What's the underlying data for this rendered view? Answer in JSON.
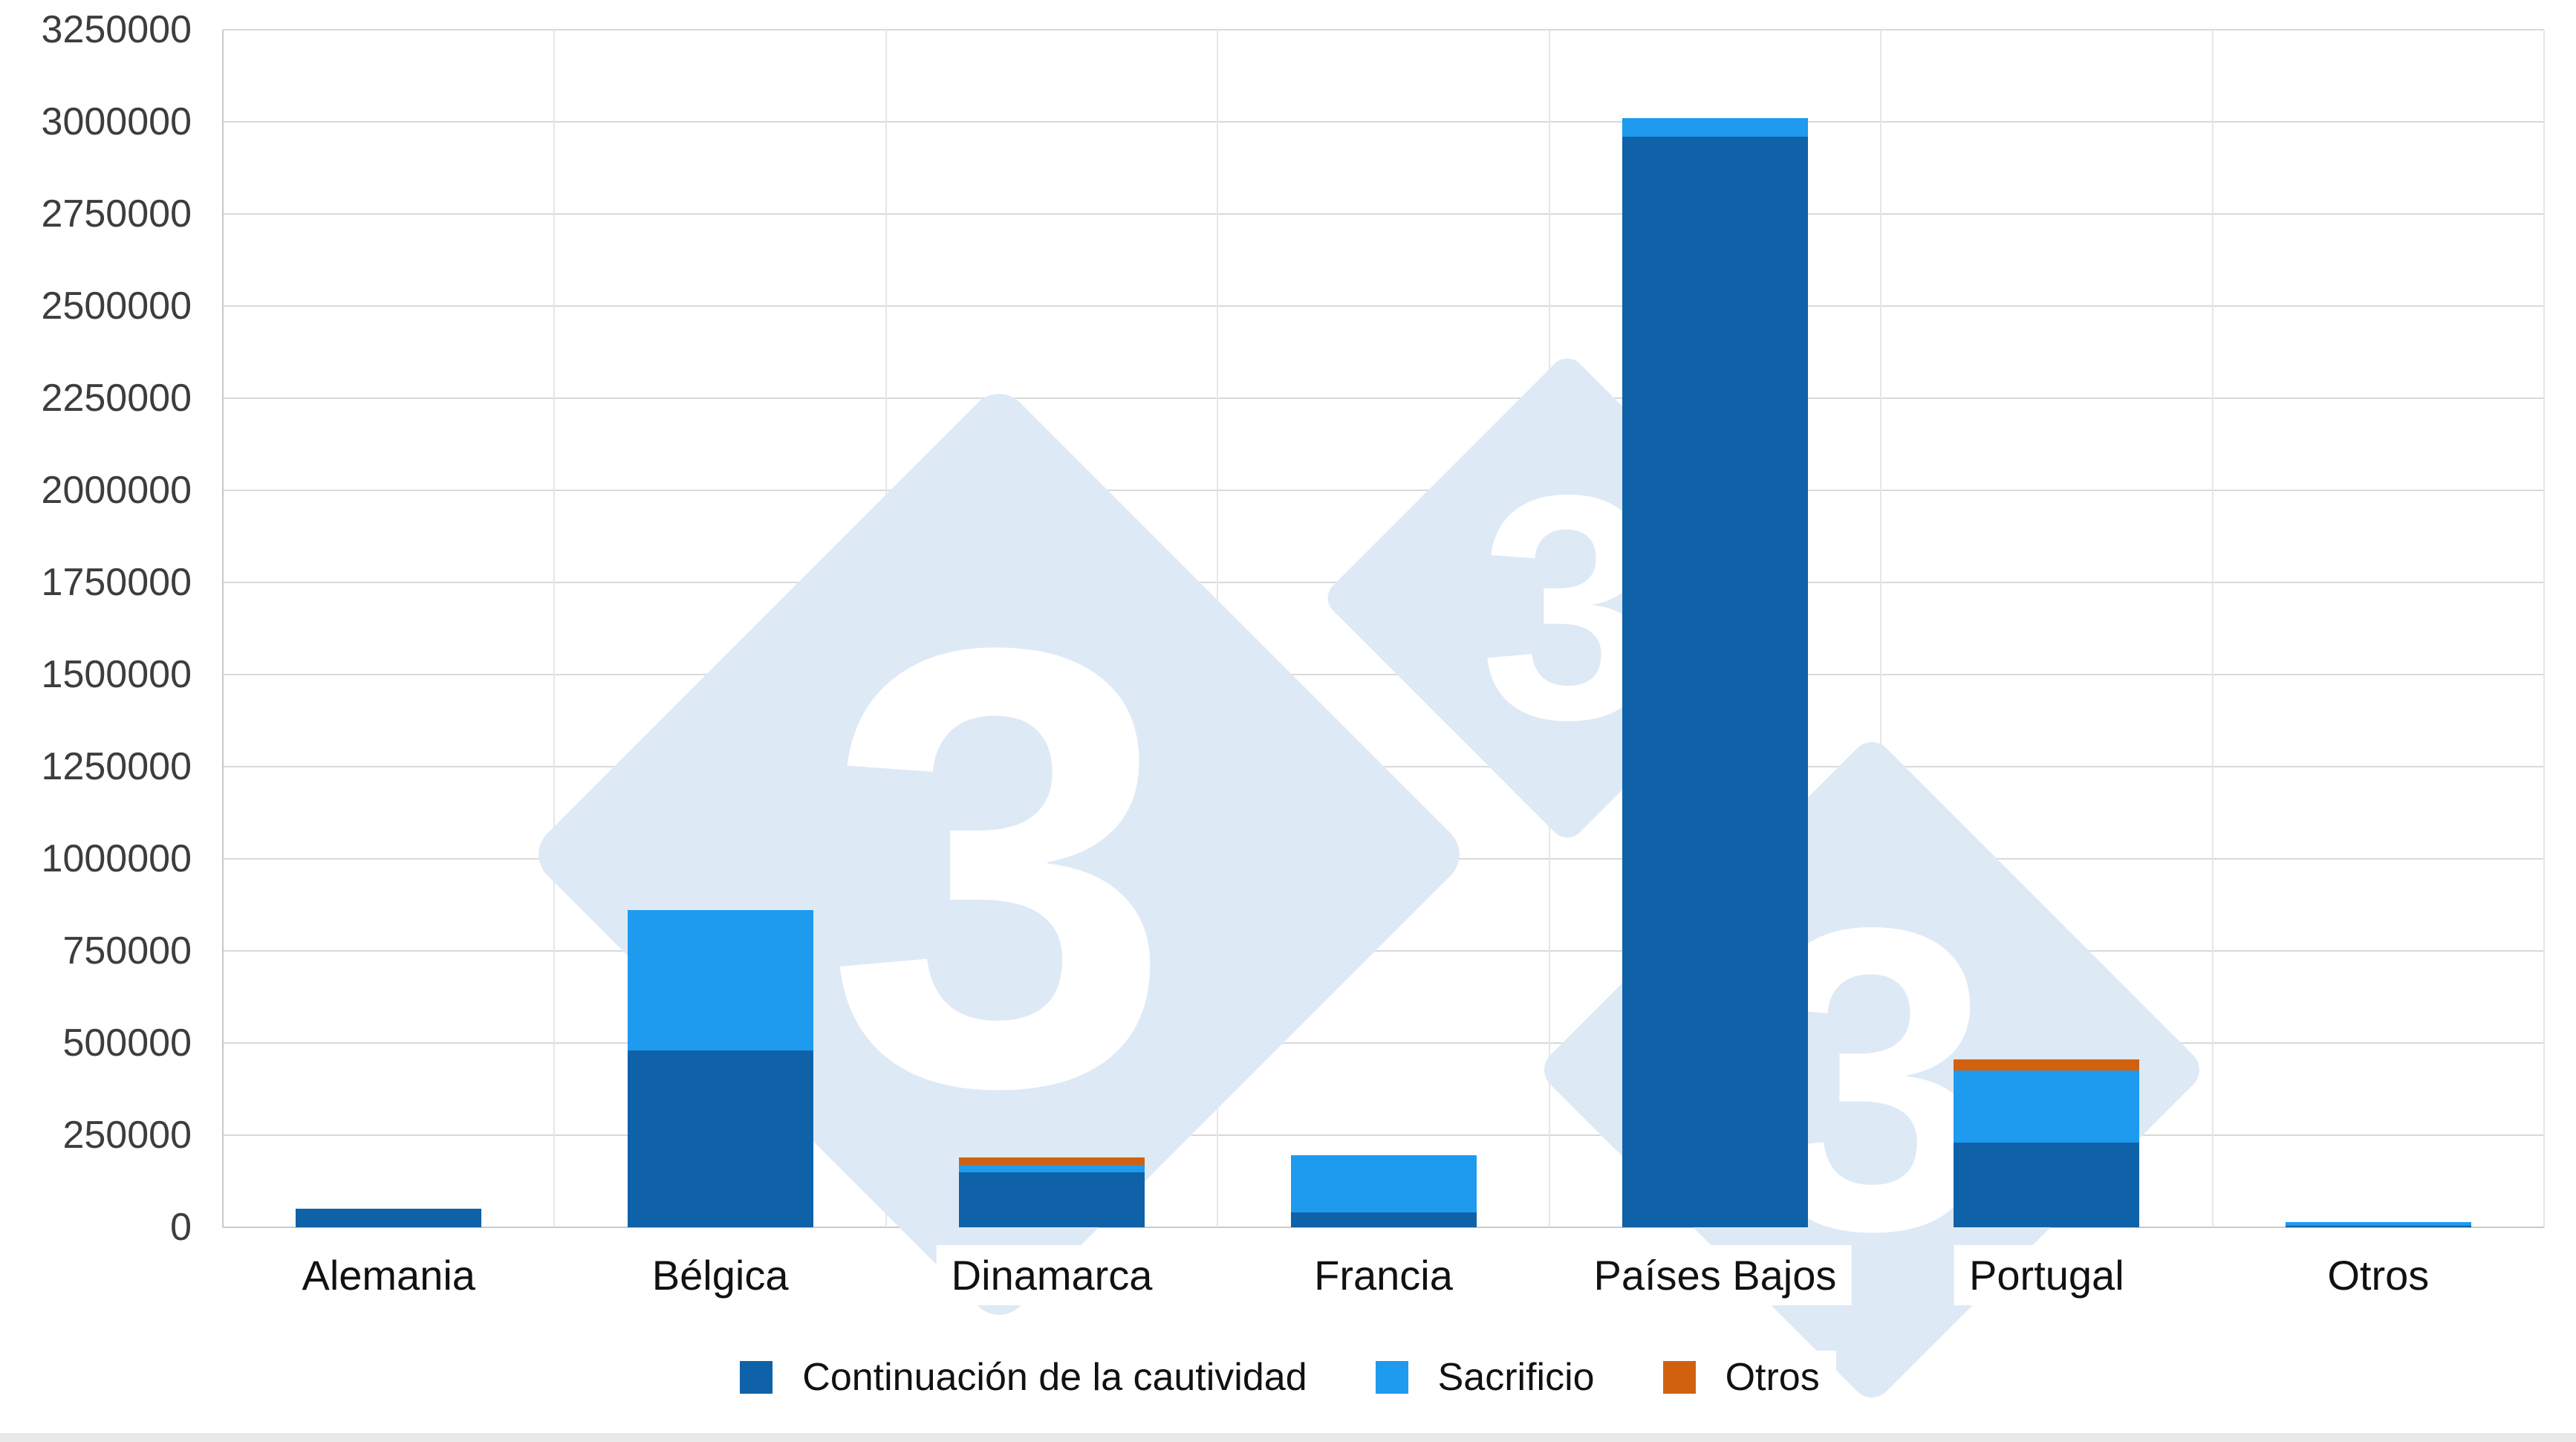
{
  "page": {
    "background": "#ffffff"
  },
  "chart_data": {
    "type": "bar",
    "stacked": true,
    "title": "",
    "xlabel": "",
    "ylabel": "",
    "grid": "horizontal",
    "legend_position": "bottom",
    "ylim": [
      0,
      3250000
    ],
    "ytick_step": 250000,
    "yticks": [
      0,
      250000,
      500000,
      750000,
      1000000,
      1250000,
      1500000,
      1750000,
      2000000,
      2250000,
      2500000,
      2750000,
      3000000,
      3250000
    ],
    "categories": [
      "Alemania",
      "Bélgica",
      "Dinamarca",
      "Francia",
      "Países Bajos",
      "Portugal",
      "Otros"
    ],
    "series": [
      {
        "name": "Continuación de la cautividad",
        "color": "#0F62A8",
        "values": [
          50000,
          480000,
          150000,
          40000,
          2960000,
          230000,
          5000
        ]
      },
      {
        "name": "Sacrificio",
        "color": "#1E9AEF",
        "values": [
          0,
          380000,
          20000,
          155000,
          50000,
          195000,
          10000
        ]
      },
      {
        "name": "Otros",
        "color": "#D2610F",
        "values": [
          0,
          0,
          20000,
          0,
          0,
          30000,
          0
        ]
      }
    ]
  },
  "watermark": {
    "digit": "3",
    "color": "#DEE9F6",
    "text_color": "#FFFFFF"
  },
  "colors": {
    "gridline": "#D9D9D9",
    "tick_label": "#3D3D3D",
    "category_label": "#111111"
  }
}
